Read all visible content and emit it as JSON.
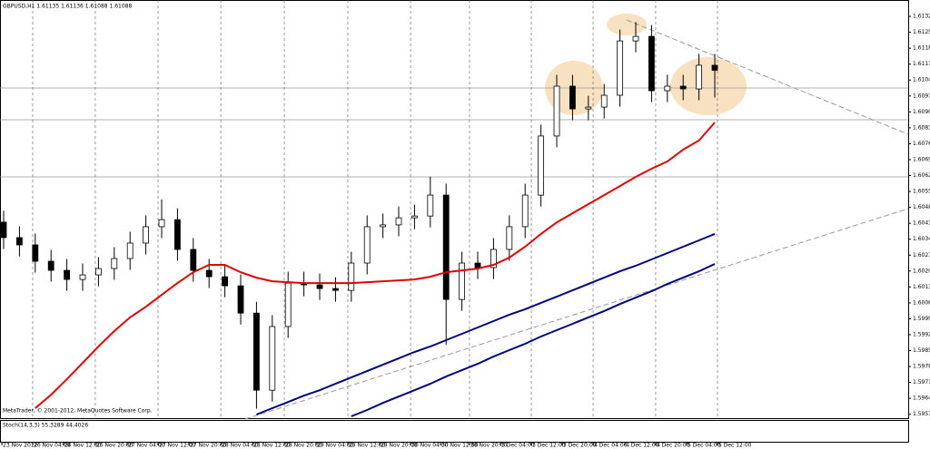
{
  "header": "GBPUSD,H1  1.61135 1.61136 1.61088 1.61088",
  "footer": "MetaTrader, © 2001-2012, MetaQuotes Software Corp.",
  "indicator": "Stoch(14,3,3) 55.3289 44.4026",
  "chart_data": {
    "type": "candlestick",
    "candles": [
      [
        1.6042,
        1.6047,
        1.60302,
        1.60352
      ],
      [
        1.60352,
        1.60402,
        1.6027,
        1.6032
      ],
      [
        1.6032,
        1.6037,
        1.60198,
        1.60248
      ],
      [
        1.60248,
        1.60298,
        1.60158,
        1.60208
      ],
      [
        1.60208,
        1.60258,
        1.60118,
        1.60168
      ],
      [
        1.60168,
        1.60238,
        1.60118,
        1.60188
      ],
      [
        1.60188,
        1.60266,
        1.60138,
        1.60216
      ],
      [
        1.60216,
        1.6031,
        1.60166,
        1.6026
      ],
      [
        1.6026,
        1.60378,
        1.6021,
        1.60328
      ],
      [
        1.60328,
        1.6045,
        1.60278,
        1.604
      ],
      [
        1.604,
        1.6052,
        1.6035,
        1.60431
      ],
      [
        1.60431,
        1.60481,
        1.6025,
        1.603
      ],
      [
        1.603,
        1.6035,
        1.60158,
        1.60208
      ],
      [
        1.60208,
        1.60258,
        1.6013,
        1.6018
      ],
      [
        1.6018,
        1.6023,
        1.6009,
        1.6014
      ],
      [
        1.6014,
        1.6019,
        1.5997,
        1.6002
      ],
      [
        1.6002,
        1.6007,
        1.596,
        1.59681
      ],
      [
        1.59681,
        1.60011,
        1.59631,
        1.59961
      ],
      [
        1.59961,
        1.60202,
        1.59911,
        1.60152
      ],
      [
        1.60152,
        1.60202,
        1.60094,
        1.60144
      ],
      [
        1.60144,
        1.60194,
        1.60078,
        1.60128
      ],
      [
        1.60128,
        1.60178,
        1.6007,
        1.6012
      ],
      [
        1.6012,
        1.6029,
        1.6007,
        1.6024
      ],
      [
        1.6024,
        1.6045,
        1.6019,
        1.604
      ],
      [
        1.604,
        1.60458,
        1.6035,
        1.60408
      ],
      [
        1.60408,
        1.60489,
        1.60358,
        1.60439
      ],
      [
        1.60439,
        1.60497,
        1.60389,
        1.60447
      ],
      [
        1.60447,
        1.6062,
        1.60397,
        1.60539
      ],
      [
        1.60539,
        1.60589,
        1.5988,
        1.6008
      ],
      [
        1.6008,
        1.6029,
        1.6003,
        1.6024
      ],
      [
        1.6024,
        1.6029,
        1.6017,
        1.6022
      ],
      [
        1.6022,
        1.6035,
        1.6017,
        1.603
      ],
      [
        1.603,
        1.6045,
        1.6025,
        1.604
      ],
      [
        1.604,
        1.60589,
        1.6035,
        1.60539
      ],
      [
        1.60539,
        1.60849,
        1.60489,
        1.60799
      ],
      [
        1.60799,
        1.61068,
        1.60749,
        1.61018
      ],
      [
        1.61018,
        1.61068,
        1.60868,
        1.60918
      ],
      [
        1.60918,
        1.60976,
        1.60868,
        1.60926
      ],
      [
        1.60926,
        1.61028,
        1.60876,
        1.60978
      ],
      [
        1.60978,
        1.61267,
        1.60928,
        1.61217
      ],
      [
        1.61217,
        1.613,
        1.61167,
        1.61237
      ],
      [
        1.61237,
        1.61287,
        1.60948,
        1.60998
      ],
      [
        1.60998,
        1.61068,
        1.60948,
        1.61018
      ],
      [
        1.61018,
        1.61068,
        1.60956,
        1.61006
      ],
      [
        1.61006,
        1.6116,
        1.60956,
        1.6111
      ],
      [
        1.6111,
        1.6116,
        1.60968,
        1.61088
      ]
    ],
    "series": [
      {
        "color": "#e00000",
        "values": [
          null,
          null,
          1.59602,
          1.59661,
          1.59729,
          1.59801,
          1.59873,
          1.59941,
          1.60001,
          1.60048,
          1.601,
          1.60152,
          1.602,
          1.60232,
          1.60232,
          1.602,
          1.60176,
          1.6016,
          1.60156,
          1.60152,
          1.60152,
          1.60152,
          1.60152,
          1.60156,
          1.6016,
          1.60164,
          1.60168,
          1.6018,
          1.602,
          1.60208,
          1.60216,
          1.60232,
          1.60264,
          1.60312,
          1.60368,
          1.60419,
          1.60459,
          1.60499,
          1.60539,
          1.60579,
          1.60619,
          1.60655,
          1.60687,
          1.60739,
          1.60779,
          1.60858
        ]
      },
      {
        "color": "#000080",
        "values": [
          null,
          null,
          null,
          null,
          null,
          null,
          null,
          null,
          null,
          null,
          null,
          null,
          null,
          null,
          null,
          null,
          1.59574,
          1.59602,
          1.59629,
          1.59657,
          1.59681,
          1.59709,
          1.59737,
          1.59765,
          1.59793,
          1.59821,
          1.59849,
          1.59873,
          1.59901,
          1.59929,
          1.59957,
          1.59985,
          1.60013,
          1.60037,
          1.60065,
          1.60092,
          1.6012,
          1.60148,
          1.60176,
          1.60204,
          1.60228,
          1.60256,
          1.60284,
          1.60312,
          1.6034,
          1.60368
        ]
      },
      {
        "color": "#000080",
        "values": [
          null,
          null,
          null,
          null,
          null,
          null,
          null,
          null,
          null,
          null,
          null,
          null,
          null,
          null,
          null,
          null,
          null,
          null,
          null,
          null,
          null,
          null,
          1.59566,
          1.59594,
          1.59625,
          1.59653,
          1.59681,
          1.59709,
          1.59741,
          1.59769,
          1.59797,
          1.59829,
          1.59857,
          1.59885,
          1.59917,
          1.59945,
          1.59973,
          1.60001,
          1.60029,
          1.6006,
          1.60088,
          1.60116,
          1.60148,
          1.60176,
          1.60204,
          1.60236
        ]
      }
    ],
    "bull_color": "#ffffff",
    "bear_color": "#000000",
    "xlim": [
      -0.23,
      57.24
    ],
    "xticks": [
      {
        "value": -0.11,
        "label": "23 Nov 2012"
      },
      {
        "value": 1.84,
        "label": "26 Nov 04:00"
      },
      {
        "value": 3.79,
        "label": "26 Nov 12:00"
      },
      {
        "value": 5.8,
        "label": "26 Nov 20:00"
      },
      {
        "value": 7.82,
        "label": "27 Nov 04:00"
      },
      {
        "value": 9.77,
        "label": "27 Nov 12:00"
      },
      {
        "value": 11.72,
        "label": "27 Nov 20:00"
      },
      {
        "value": 13.74,
        "label": "28 Nov 04:00"
      },
      {
        "value": 15.75,
        "label": "28 Nov 12:00"
      },
      {
        "value": 17.76,
        "label": "28 Nov 20:00"
      },
      {
        "value": 19.77,
        "label": "29 Nov 04:00"
      },
      {
        "value": 21.78,
        "label": "29 Nov 12:00"
      },
      {
        "value": 23.79,
        "label": "29 Nov 20:00"
      },
      {
        "value": 25.75,
        "label": "30 Nov 04:00"
      },
      {
        "value": 27.64,
        "label": "30 Nov 12:00"
      },
      {
        "value": 29.48,
        "label": "30 Nov 20:00"
      },
      {
        "value": 31.44,
        "label": "3 Dec 04:00"
      },
      {
        "value": 33.39,
        "label": "3 Dec 12:00"
      },
      {
        "value": 35.34,
        "label": "3 Dec 20:00"
      },
      {
        "value": 37.3,
        "label": "4 Dec 04:00"
      },
      {
        "value": 39.31,
        "label": "4 Dec 12:00"
      },
      {
        "value": 41.26,
        "label": "4 Dec 20:00"
      },
      {
        "value": 43.22,
        "label": "5 Dec 04:00"
      },
      {
        "value": 45.17,
        "label": "5 Dec 12:00"
      }
    ],
    "ylim": [
      1.59554,
      1.61397
    ],
    "yticks": [
      1.61325,
      1.61255,
      1.61185,
      1.61115,
      1.61045,
      1.60975,
      1.60905,
      1.60835,
      1.60765,
      1.60695,
      1.60625,
      1.60555,
      1.60485,
      1.60415,
      1.60345,
      1.60275,
      1.60205,
      1.60135,
      1.60065,
      1.59995,
      1.59925,
      1.59855,
      1.59785,
      1.59715,
      1.59645,
      1.59575
    ],
    "grid": true
  }
}
